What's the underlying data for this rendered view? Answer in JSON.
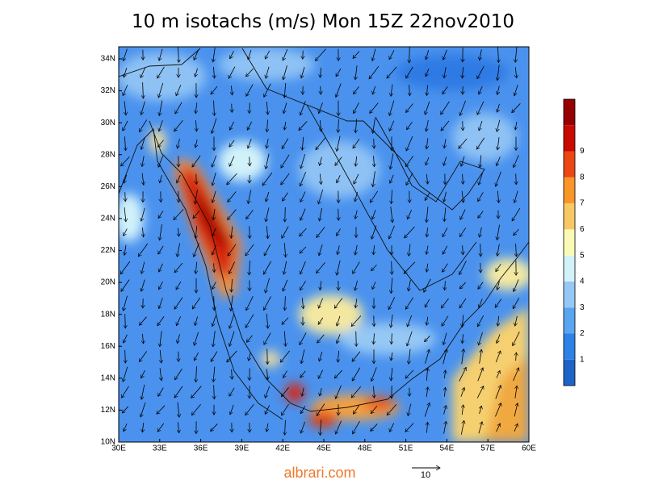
{
  "title": "10 m isotachs (m/s) Mon 15Z 22nov2010",
  "map": {
    "lat_labels": [
      "10N",
      "12N",
      "14N",
      "16N",
      "18N",
      "20N",
      "22N",
      "24N",
      "26N",
      "28N",
      "30N",
      "32N",
      "34N"
    ],
    "lon_labels": [
      "30E",
      "33E",
      "36E",
      "39E",
      "42E",
      "45E",
      "48E",
      "51E",
      "54E",
      "57E",
      "60E"
    ]
  },
  "colorbar": {
    "labels": [
      "1",
      "2",
      "3",
      "4",
      "5",
      "6",
      "7",
      "8",
      "9"
    ],
    "colors": [
      "#1e64c8",
      "#2d82e6",
      "#5aa5f0",
      "#96c8f5",
      "#d2f2fa",
      "#fafab4",
      "#f8c864",
      "#f89628",
      "#ec4614",
      "#c80a00",
      "#960000"
    ]
  },
  "reference_vector": {
    "label": "10"
  },
  "watermark": "albrari.com"
}
